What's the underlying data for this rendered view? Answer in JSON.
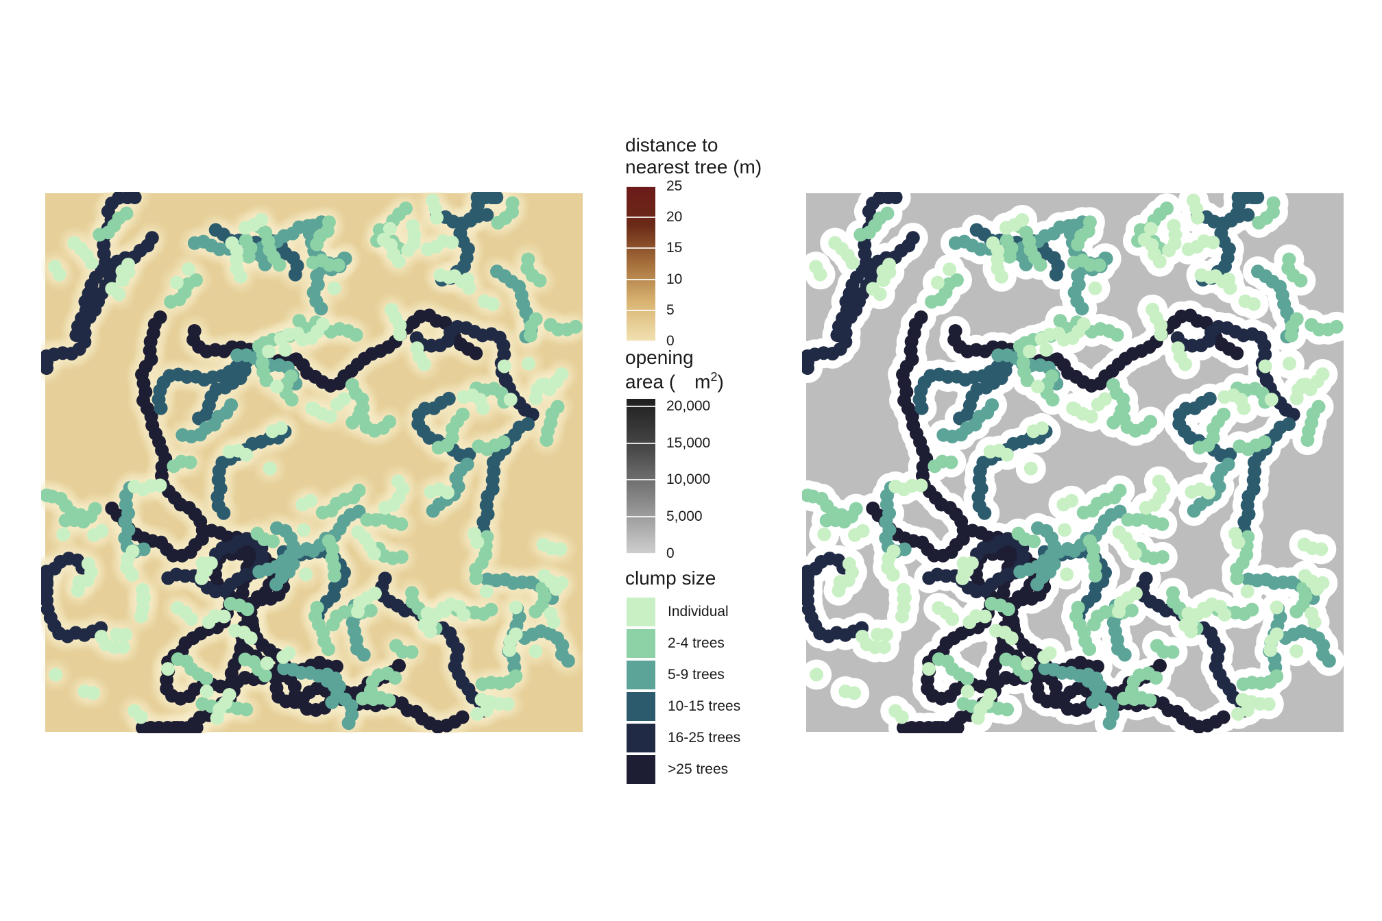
{
  "colors": {
    "clump": {
      "Individual": "#c9f0c4",
      "2-4 trees": "#8dd1a6",
      "5-9 trees": "#5ca398",
      "10-15 trees": "#2d5b6e",
      "16-25 trees": "#202a45",
      ">25 trees": "#1d1d33"
    },
    "opening_gray": "#bdbdbd",
    "buffer_white": "#ffffff"
  },
  "chart_data": [
    {
      "type": "scatter",
      "panel": "left",
      "background": "raster of distance to nearest tree (m)",
      "xlim": [
        0,
        100
      ],
      "ylim": [
        0,
        100
      ],
      "grid": false,
      "series_by": "clump size"
    },
    {
      "type": "scatter",
      "panel": "right",
      "background": "raster of opening area (m2)",
      "xlim": [
        0,
        100
      ],
      "ylim": [
        0,
        100
      ],
      "grid": false,
      "series_by": "clump size"
    }
  ],
  "legend": {
    "distance": {
      "title_line1": "distance to",
      "title_line2": "nearest tree (m)",
      "ticks": [
        "25",
        "20",
        "15",
        "10",
        "5",
        "0"
      ],
      "tick_values": [
        25,
        20,
        15,
        10,
        5,
        0
      ],
      "range": [
        0,
        25
      ],
      "gradient": [
        "#f1e2b2",
        "#d9b472",
        "#a66f3b",
        "#6a2a17",
        "#6d1a1a"
      ]
    },
    "opening": {
      "title_line1": "opening",
      "title_line2_a": "area (",
      "title_line2_b": "m",
      "title_line2_sup": "2",
      "title_line2_c": ")",
      "ticks": [
        "20,000",
        "15,000",
        "10,000",
        "5,000",
        "0"
      ],
      "tick_values": [
        20000,
        15000,
        10000,
        5000,
        0
      ],
      "range": [
        0,
        21000
      ],
      "gradient": [
        "#cfcfcf",
        "#8a8a8a",
        "#4a4a4a",
        "#1f1f1f"
      ]
    },
    "clump": {
      "title": "clump size",
      "items": [
        "Individual",
        "2-4 trees",
        "5-9 trees",
        "10-15 trees",
        "16-25 trees",
        ">25 trees"
      ]
    }
  }
}
